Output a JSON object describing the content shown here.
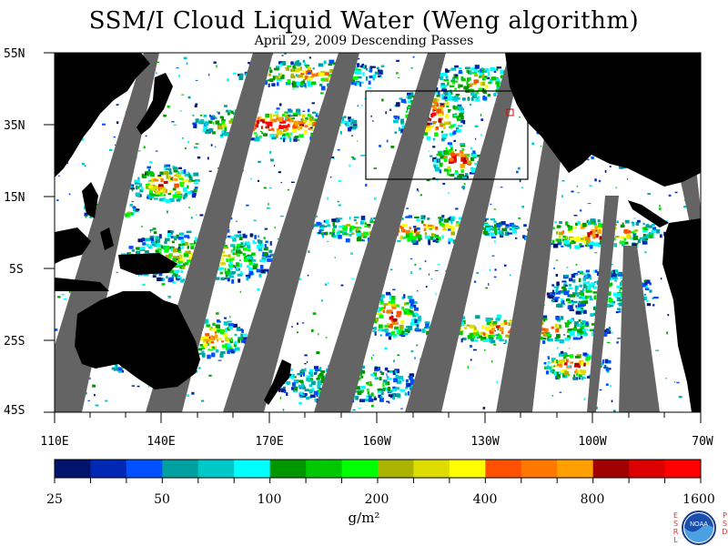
{
  "title": "SSM/I Cloud Liquid Water (Weng algorithm)",
  "subtitle": "April 29, 2009  Descending Passes",
  "lat_labels": [
    "55N",
    "35N",
    "15N",
    "5S",
    "25S",
    "45S"
  ],
  "lon_labels": [
    "110E",
    "140E",
    "170E",
    "160W",
    "130W",
    "100W",
    "70W"
  ],
  "colorbar": {
    "colors": [
      "#00146e",
      "#0028b4",
      "#0050ff",
      "#00a0a0",
      "#00c8c8",
      "#00ffff",
      "#009600",
      "#00c800",
      "#00ff00",
      "#aab400",
      "#dcdc00",
      "#ffff00",
      "#ff5000",
      "#ff7800",
      "#ffa000",
      "#a00000",
      "#dc0000",
      "#ff0000"
    ],
    "labels": [
      "25",
      "50",
      "100",
      "200",
      "400",
      "800",
      "1600"
    ],
    "units": "g/m²"
  },
  "logo": {
    "name": "noaa-logo",
    "left_letters": "ESRL",
    "right_letters": "PSD",
    "text": "NOAA"
  },
  "colors": {
    "land": "#000000",
    "no_data": "#646464",
    "clear": "#ffffff"
  }
}
